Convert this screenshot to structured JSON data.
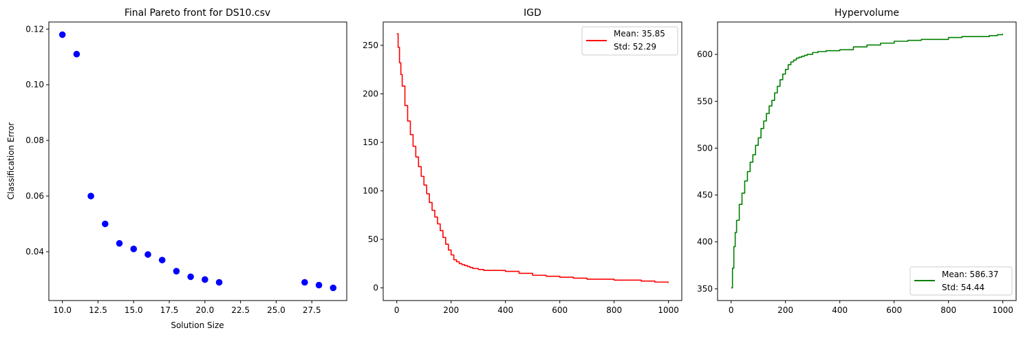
{
  "chart_data": [
    {
      "type": "scatter",
      "title": "Final Pareto front for DS10.csv",
      "xlabel": "Solution Size",
      "ylabel": "Classification Error",
      "xlim": [
        9.05,
        29.95
      ],
      "ylim": [
        0.02245,
        0.12255
      ],
      "xticks": [
        10.0,
        12.5,
        15.0,
        17.5,
        20.0,
        22.5,
        25.0,
        27.5
      ],
      "xtick_labels": [
        "10.0",
        "12.5",
        "15.0",
        "17.5",
        "20.0",
        "22.5",
        "25.0",
        "27.5"
      ],
      "yticks": [
        0.04,
        0.06,
        0.08,
        0.1,
        0.12
      ],
      "ytick_labels": [
        "0.04",
        "0.06",
        "0.08",
        "0.10",
        "0.12"
      ],
      "color": "#0000ff",
      "grid": false,
      "points": [
        {
          "x": 10,
          "y": 0.118
        },
        {
          "x": 11,
          "y": 0.111
        },
        {
          "x": 12,
          "y": 0.06
        },
        {
          "x": 13,
          "y": 0.05
        },
        {
          "x": 14,
          "y": 0.043
        },
        {
          "x": 15,
          "y": 0.041
        },
        {
          "x": 16,
          "y": 0.039
        },
        {
          "x": 17,
          "y": 0.037
        },
        {
          "x": 18,
          "y": 0.033
        },
        {
          "x": 19,
          "y": 0.031
        },
        {
          "x": 20,
          "y": 0.03
        },
        {
          "x": 21,
          "y": 0.029
        },
        {
          "x": 27,
          "y": 0.029
        },
        {
          "x": 28,
          "y": 0.028
        },
        {
          "x": 29,
          "y": 0.027
        }
      ]
    },
    {
      "type": "line",
      "title": "IGD",
      "xlabel": "",
      "ylabel": "",
      "xlim": [
        -49.95,
        1048.95
      ],
      "ylim": [
        -13.05,
        274.05
      ],
      "xticks": [
        0,
        200,
        400,
        600,
        800,
        1000
      ],
      "xtick_labels": [
        "0",
        "200",
        "400",
        "600",
        "800",
        "1000"
      ],
      "yticks": [
        0,
        50,
        100,
        150,
        200,
        250
      ],
      "ytick_labels": [
        "0",
        "50",
        "100",
        "150",
        "200",
        "250"
      ],
      "color": "#ff0000",
      "grid": false,
      "legend": {
        "position": "upper right",
        "lines": [
          "Mean: 35.85",
          "Std: 52.29"
        ]
      },
      "series": [
        {
          "x": [
            0,
            5,
            10,
            15,
            20,
            30,
            40,
            50,
            60,
            70,
            80,
            90,
            100,
            110,
            120,
            130,
            140,
            150,
            160,
            170,
            180,
            190,
            200,
            210,
            220,
            230,
            240,
            250,
            260,
            270,
            280,
            300,
            320,
            350,
            400,
            450,
            500,
            550,
            600,
            650,
            700,
            750,
            800,
            850,
            900,
            950,
            980,
            999
          ],
          "y": [
            262,
            248,
            232,
            220,
            208,
            188,
            172,
            158,
            146,
            135,
            125,
            115,
            106,
            97,
            88,
            80,
            73,
            66,
            59,
            52,
            45,
            39,
            34,
            29,
            27,
            25,
            24,
            23,
            22,
            21,
            20,
            19,
            18,
            18,
            17,
            15,
            13,
            12,
            11,
            10,
            9,
            9,
            8,
            8,
            7,
            6,
            6,
            5
          ]
        }
      ]
    },
    {
      "type": "line",
      "title": "Hypervolume",
      "xlabel": "",
      "ylabel": "",
      "xlim": [
        -49.95,
        1048.95
      ],
      "ylim": [
        337.45,
        634.55
      ],
      "xticks": [
        0,
        200,
        400,
        600,
        800,
        1000
      ],
      "xtick_labels": [
        "0",
        "200",
        "400",
        "600",
        "800",
        "1000"
      ],
      "yticks": [
        350,
        400,
        450,
        500,
        550,
        600
      ],
      "ytick_labels": [
        "350",
        "400",
        "450",
        "500",
        "550",
        "600"
      ],
      "color": "#008000",
      "grid": false,
      "legend": {
        "position": "lower right",
        "lines": [
          "Mean: 586.37",
          "Std: 54.44"
        ]
      },
      "series": [
        {
          "x": [
            0,
            5,
            10,
            15,
            20,
            30,
            40,
            50,
            60,
            70,
            80,
            90,
            100,
            110,
            120,
            130,
            140,
            150,
            160,
            170,
            180,
            190,
            200,
            210,
            220,
            230,
            240,
            250,
            260,
            270,
            280,
            300,
            320,
            350,
            400,
            450,
            500,
            550,
            600,
            650,
            700,
            750,
            800,
            850,
            900,
            950,
            980,
            999
          ],
          "y": [
            351,
            372,
            395,
            410,
            423,
            440,
            452,
            465,
            475,
            485,
            493,
            503,
            511,
            521,
            529,
            537,
            545,
            551,
            559,
            566,
            573,
            579,
            584,
            589,
            592,
            594,
            596,
            597,
            598,
            599,
            600,
            602,
            603,
            604,
            605,
            608,
            610,
            612,
            614,
            615,
            616,
            616,
            618,
            619,
            619,
            620,
            621,
            622
          ]
        }
      ]
    }
  ]
}
